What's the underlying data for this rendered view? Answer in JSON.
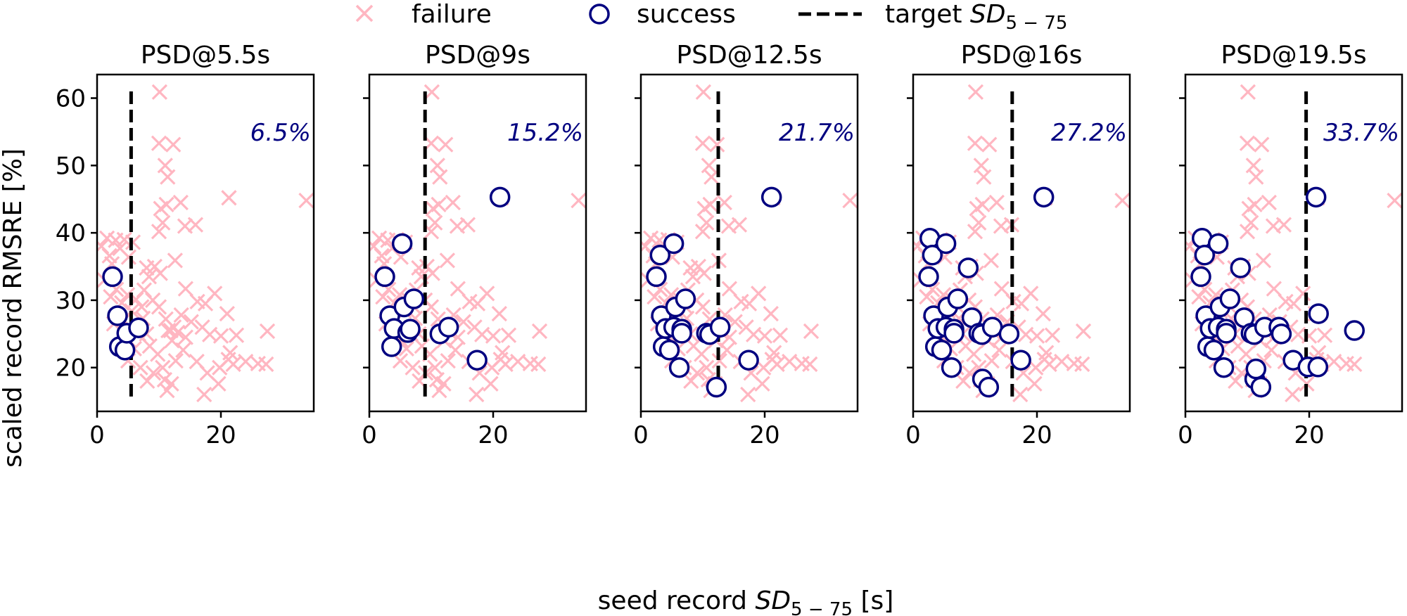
{
  "legend": {
    "placement": "top-center",
    "items": [
      {
        "label": "failure",
        "marker": "x",
        "color": "#ffb6c1"
      },
      {
        "label": "success",
        "marker": "circle",
        "color": "#000080"
      },
      {
        "label": "target",
        "label_math": "SD",
        "label_sub": "5 − 75",
        "marker": "dashed-line",
        "color": "#000000"
      }
    ]
  },
  "shared": {
    "ylabel": "scaled record RMSRE [%]",
    "xlabel_prefix": "seed record",
    "xlabel_math": "SD",
    "xlabel_sub": "5 − 75",
    "xlabel_suffix": "[s]",
    "xlim": [
      0,
      35
    ],
    "ylim": [
      13.5,
      63.5
    ],
    "xticks": [
      0,
      20
    ],
    "yticks": [
      20,
      30,
      40,
      50,
      60
    ],
    "grid": false
  },
  "chart_data": [
    {
      "type": "scatter",
      "title": "PSD@5.5s",
      "target": 5.5,
      "annotation": "6.5%",
      "success": [
        [
          2.5,
          33.5
        ],
        [
          3.3,
          27.7
        ],
        [
          3.6,
          23.1
        ],
        [
          4.5,
          22.6
        ],
        [
          4.8,
          25.1
        ],
        [
          6.7,
          25.9
        ]
      ]
    },
    {
      "type": "scatter",
      "title": "PSD@9s",
      "target": 9,
      "annotation": "15.2%",
      "success": [
        [
          2.5,
          33.5
        ],
        [
          3.3,
          27.7
        ],
        [
          3.6,
          23.1
        ],
        [
          4.0,
          25.8
        ],
        [
          5.3,
          38.4
        ],
        [
          5.6,
          29.0
        ],
        [
          6.2,
          25.2
        ],
        [
          6.6,
          25.7
        ],
        [
          7.2,
          30.2
        ],
        [
          11.4,
          25.0
        ],
        [
          12.8,
          26.0
        ],
        [
          17.4,
          21.1
        ],
        [
          21.1,
          45.3
        ]
      ]
    },
    {
      "type": "scatter",
      "title": "PSD@12.5s",
      "target": 12.5,
      "annotation": "21.7%",
      "success": [
        [
          2.5,
          33.5
        ],
        [
          3.1,
          36.7
        ],
        [
          3.3,
          27.7
        ],
        [
          3.6,
          23.1
        ],
        [
          4.0,
          25.8
        ],
        [
          4.6,
          22.6
        ],
        [
          5.3,
          38.4
        ],
        [
          5.3,
          26.0
        ],
        [
          5.6,
          29.0
        ],
        [
          6.2,
          20.0
        ],
        [
          6.6,
          25.7
        ],
        [
          6.6,
          25.1
        ],
        [
          7.2,
          30.2
        ],
        [
          10.6,
          25.1
        ],
        [
          11.1,
          24.9
        ],
        [
          12.2,
          17.1
        ],
        [
          12.8,
          26.0
        ],
        [
          17.4,
          21.1
        ],
        [
          21.1,
          45.3
        ]
      ]
    },
    {
      "type": "scatter",
      "title": "PSD@16s",
      "target": 16,
      "annotation": "27.2%",
      "success": [
        [
          2.5,
          33.5
        ],
        [
          2.7,
          39.2
        ],
        [
          3.1,
          36.7
        ],
        [
          3.3,
          27.7
        ],
        [
          3.6,
          23.1
        ],
        [
          4.0,
          25.8
        ],
        [
          4.6,
          22.6
        ],
        [
          5.3,
          38.4
        ],
        [
          5.3,
          26.0
        ],
        [
          5.6,
          29.0
        ],
        [
          6.2,
          20.0
        ],
        [
          6.6,
          25.7
        ],
        [
          6.6,
          25.1
        ],
        [
          7.2,
          30.2
        ],
        [
          8.9,
          34.8
        ],
        [
          9.5,
          27.4
        ],
        [
          10.6,
          25.1
        ],
        [
          11.1,
          24.9
        ],
        [
          11.2,
          18.3
        ],
        [
          12.2,
          17.1
        ],
        [
          12.8,
          26.0
        ],
        [
          15.5,
          25.0
        ],
        [
          17.4,
          21.1
        ],
        [
          21.1,
          45.3
        ]
      ]
    },
    {
      "type": "scatter",
      "title": "PSD@19.5s",
      "target": 19.5,
      "annotation": "33.7%",
      "success": [
        [
          2.5,
          33.5
        ],
        [
          2.7,
          39.2
        ],
        [
          3.1,
          36.7
        ],
        [
          3.3,
          27.7
        ],
        [
          3.6,
          23.1
        ],
        [
          4.0,
          25.8
        ],
        [
          4.6,
          22.6
        ],
        [
          5.3,
          38.4
        ],
        [
          5.3,
          26.0
        ],
        [
          5.6,
          29.0
        ],
        [
          6.2,
          20.0
        ],
        [
          6.6,
          25.7
        ],
        [
          6.6,
          25.1
        ],
        [
          7.2,
          30.2
        ],
        [
          8.9,
          34.8
        ],
        [
          9.5,
          27.4
        ],
        [
          10.6,
          25.1
        ],
        [
          11.1,
          24.9
        ],
        [
          11.2,
          18.3
        ],
        [
          11.4,
          19.8
        ],
        [
          12.2,
          17.1
        ],
        [
          12.8,
          26.0
        ],
        [
          15.1,
          26.0
        ],
        [
          15.5,
          25.0
        ],
        [
          17.4,
          21.1
        ],
        [
          19.8,
          20.1
        ],
        [
          21.1,
          45.3
        ],
        [
          21.4,
          20.1
        ],
        [
          21.5,
          28.0
        ],
        [
          27.3,
          25.5
        ]
      ]
    }
  ],
  "failure_points": [
    [
      0.7,
      38.0
    ],
    [
      1.6,
      39.2
    ],
    [
      2.0,
      36.6
    ],
    [
      2.4,
      35.4
    ],
    [
      3.0,
      38.9
    ],
    [
      3.7,
      37.7
    ],
    [
      4.4,
      39.0
    ],
    [
      5.1,
      36.4
    ],
    [
      5.8,
      38.6
    ],
    [
      1.2,
      33.0
    ],
    [
      2.2,
      30.5
    ],
    [
      3.1,
      31.6
    ],
    [
      4.0,
      29.6
    ],
    [
      4.9,
      30.8
    ],
    [
      5.6,
      28.4
    ],
    [
      6.3,
      30.1
    ],
    [
      7.2,
      29.0
    ],
    [
      2.7,
      26.5
    ],
    [
      4.3,
      27.0
    ],
    [
      5.2,
      24.0
    ],
    [
      6.0,
      22.8
    ],
    [
      7.4,
      27.3
    ],
    [
      8.0,
      25.0
    ],
    [
      5.0,
      21.0
    ],
    [
      7.0,
      20.0
    ],
    [
      8.5,
      23.2
    ],
    [
      9.8,
      22.0
    ],
    [
      10.6,
      20.0
    ],
    [
      8.1,
      18.0
    ],
    [
      9.1,
      19.2
    ],
    [
      10.9,
      18.2
    ],
    [
      11.3,
      16.6
    ],
    [
      12.0,
      17.6
    ],
    [
      7.6,
      31.5
    ],
    [
      8.4,
      33.5
    ],
    [
      9.3,
      35.0
    ],
    [
      10.2,
      34.0
    ],
    [
      8.0,
      34.8
    ],
    [
      9.0,
      30.0
    ],
    [
      10.0,
      29.0
    ],
    [
      11.1,
      27.2
    ],
    [
      12.4,
      26.0
    ],
    [
      13.0,
      25.2
    ],
    [
      13.6,
      27.8
    ],
    [
      14.3,
      24.5
    ],
    [
      15.2,
      26.8
    ],
    [
      12.1,
      24.0
    ],
    [
      13.9,
      22.6
    ],
    [
      12.7,
      21.0
    ],
    [
      10.0,
      40.2
    ],
    [
      10.6,
      41.5
    ],
    [
      10.3,
      43.6
    ],
    [
      11.2,
      44.2
    ],
    [
      13.5,
      44.5
    ],
    [
      14.2,
      41.0
    ],
    [
      15.9,
      41.2
    ],
    [
      12.6,
      35.9
    ],
    [
      14.3,
      31.7
    ],
    [
      16.2,
      29.8
    ],
    [
      17.5,
      29.5
    ],
    [
      19.0,
      31.0
    ],
    [
      17.0,
      26.0
    ],
    [
      18.2,
      24.9
    ],
    [
      20.0,
      24.7
    ],
    [
      21.0,
      28.0
    ],
    [
      22.5,
      24.8
    ],
    [
      16.1,
      20.9
    ],
    [
      17.8,
      19.2
    ],
    [
      19.8,
      20.0
    ],
    [
      21.2,
      21.2
    ],
    [
      22.0,
      20.5
    ],
    [
      24.0,
      20.9
    ],
    [
      26.0,
      20.6
    ],
    [
      27.3,
      20.5
    ],
    [
      27.5,
      25.4
    ],
    [
      17.3,
      16.0
    ],
    [
      19.6,
      17.6
    ],
    [
      21.5,
      22.2
    ],
    [
      10.1,
      60.9
    ],
    [
      10.0,
      53.3
    ],
    [
      12.3,
      53.1
    ],
    [
      11.0,
      50.0
    ],
    [
      11.4,
      48.3
    ],
    [
      21.3,
      45.2
    ],
    [
      33.8,
      44.8
    ],
    [
      11.5,
      25.5
    ],
    [
      6.7,
      25.0
    ],
    [
      11.9,
      25.5
    ]
  ]
}
